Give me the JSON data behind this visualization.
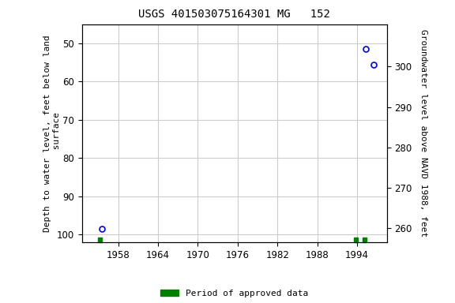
{
  "title": "USGS 401503075164301 MG   152",
  "ylabel_left": "Depth to water level, feet below land\n surface",
  "ylabel_right": "Groundwater level above NAVD 1988, feet",
  "xlim": [
    1952.5,
    1998.5
  ],
  "ylim_left": [
    102,
    45
  ],
  "ylim_right": [
    256.5,
    310.5
  ],
  "xticks": [
    1958,
    1964,
    1970,
    1976,
    1982,
    1988,
    1994
  ],
  "yticks_left": [
    50,
    60,
    70,
    80,
    90,
    100
  ],
  "yticks_right": [
    260,
    270,
    280,
    290,
    300
  ],
  "data_points": [
    {
      "x": 1955.5,
      "y_left": 98.5
    },
    {
      "x": 1995.3,
      "y_left": 51.5
    },
    {
      "x": 1996.5,
      "y_left": 55.5
    }
  ],
  "green_squares": [
    {
      "x": 1955.2
    },
    {
      "x": 1993.8
    },
    {
      "x": 1995.2
    }
  ],
  "grid_color": "#cccccc",
  "background_color": "#ffffff",
  "point_color": "#0000ff",
  "legend_label": "Period of approved data",
  "legend_color": "#008000",
  "title_fontsize": 10,
  "label_fontsize": 8,
  "tick_fontsize": 8.5
}
